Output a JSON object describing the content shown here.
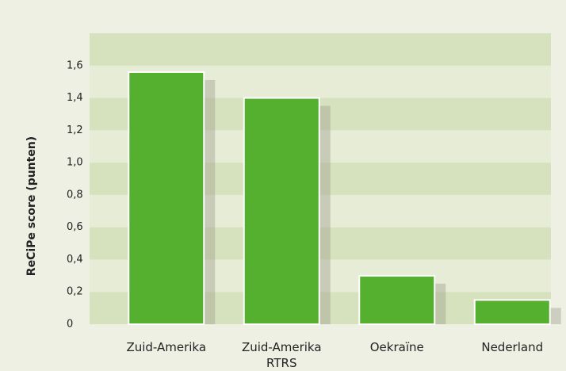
{
  "chart_data": {
    "type": "bar",
    "ylabel": "ReCiPe score (punten)",
    "categories": [
      "Zuid-Amerika",
      "Zuid-Amerika RTRS",
      "Oekraïne",
      "Nederland"
    ],
    "values": [
      1.56,
      1.4,
      0.3,
      0.15
    ],
    "color": "#55b030",
    "ylim": [
      0,
      1.8
    ],
    "yticks": [
      0,
      {
        "value": 0.2,
        "label": "0,2"
      },
      {
        "value": 0.4,
        "label": "0,4"
      },
      {
        "value": 0.6,
        "label": "0,6"
      },
      {
        "value": 0.8,
        "label": "0,8"
      },
      {
        "value": 1.0,
        "label": "1,0"
      },
      {
        "value": 1.2,
        "label": "1,2"
      },
      {
        "value": 1.4,
        "label": "1,4"
      },
      {
        "value": 1.6,
        "label": "1,6"
      }
    ],
    "grid": true
  }
}
